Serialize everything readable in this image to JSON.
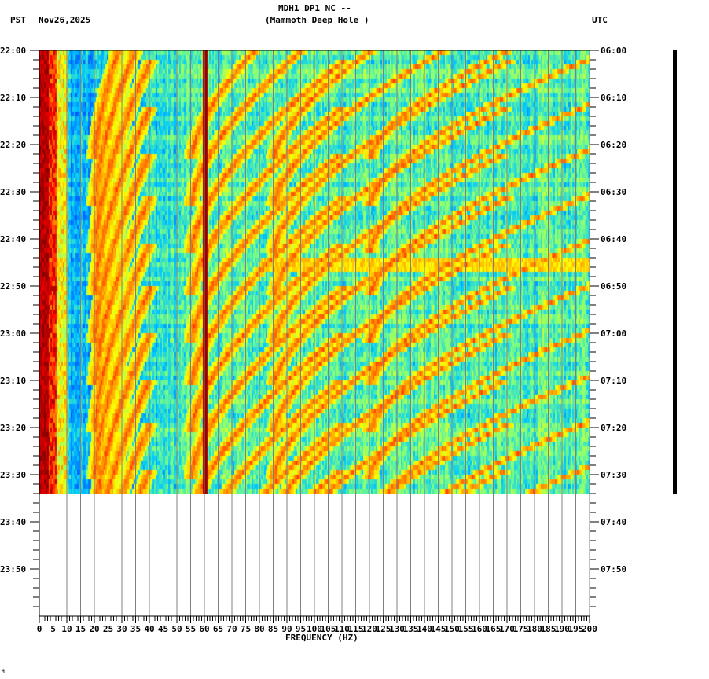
{
  "header": {
    "station_line": "MDH1 DP1 NC --",
    "station_name": "(Mammoth Deep Hole )",
    "left_timezone": "PST",
    "date": "Nov26,2025",
    "right_timezone": "UTC"
  },
  "footer": {
    "corner_mark": "M"
  },
  "colors": {
    "background": "#ffffff",
    "axis": "#000000",
    "gridline": "#808080",
    "colormap": [
      "#00008f",
      "#0050ff",
      "#00c8ff",
      "#7fff7f",
      "#ffff00",
      "#ff8000",
      "#ff0000",
      "#800000"
    ]
  },
  "chart_data": {
    "type": "heatmap",
    "title": "MDH1 DP1 NC -- (Mammoth Deep Hole )",
    "subtitle": "Nov26,2025",
    "xlabel": "FREQUENCY (HZ)",
    "ylabel_left": "PST",
    "ylabel_right": "UTC",
    "xlim": [
      0,
      200
    ],
    "x_ticks": [
      0,
      5,
      10,
      15,
      20,
      25,
      30,
      35,
      40,
      45,
      50,
      55,
      60,
      65,
      70,
      75,
      80,
      85,
      90,
      95,
      100,
      105,
      110,
      115,
      120,
      125,
      130,
      135,
      140,
      145,
      150,
      155,
      160,
      165,
      170,
      175,
      180,
      185,
      190,
      195,
      200
    ],
    "x_tick_labels": [
      "0",
      "5",
      "10",
      "15",
      "20",
      "25",
      "30",
      "35",
      "40",
      "45",
      "50",
      "55",
      "60",
      "65",
      "70",
      "75",
      "80",
      "85",
      "90",
      "95",
      "100",
      "105",
      "110",
      "115",
      "120",
      "125",
      "130",
      "135",
      "140",
      "145",
      "150",
      "155",
      "160",
      "165",
      "170",
      "175",
      "180",
      "185",
      "190",
      "195",
      "200"
    ],
    "y_ticks_left": [
      "22:00",
      "22:10",
      "22:20",
      "22:30",
      "22:40",
      "22:50",
      "23:00",
      "23:10",
      "23:20",
      "23:30",
      "23:40",
      "23:50"
    ],
    "y_ticks_right": [
      "06:00",
      "06:10",
      "06:20",
      "06:30",
      "06:40",
      "06:50",
      "07:00",
      "07:10",
      "07:20",
      "07:30",
      "07:40",
      "07:50"
    ],
    "time_range_minutes": 120,
    "data_end_minute": 94,
    "grid": true,
    "features": {
      "low_freq_high_power_band_hz": [
        0,
        8
      ],
      "persistent_line_hz": 60,
      "horizontal_band_minute": 45,
      "description": "Repeating curved harmonic-like arcs descending in frequency over time; strong energy below ~8 Hz; constant 60 Hz line."
    }
  }
}
